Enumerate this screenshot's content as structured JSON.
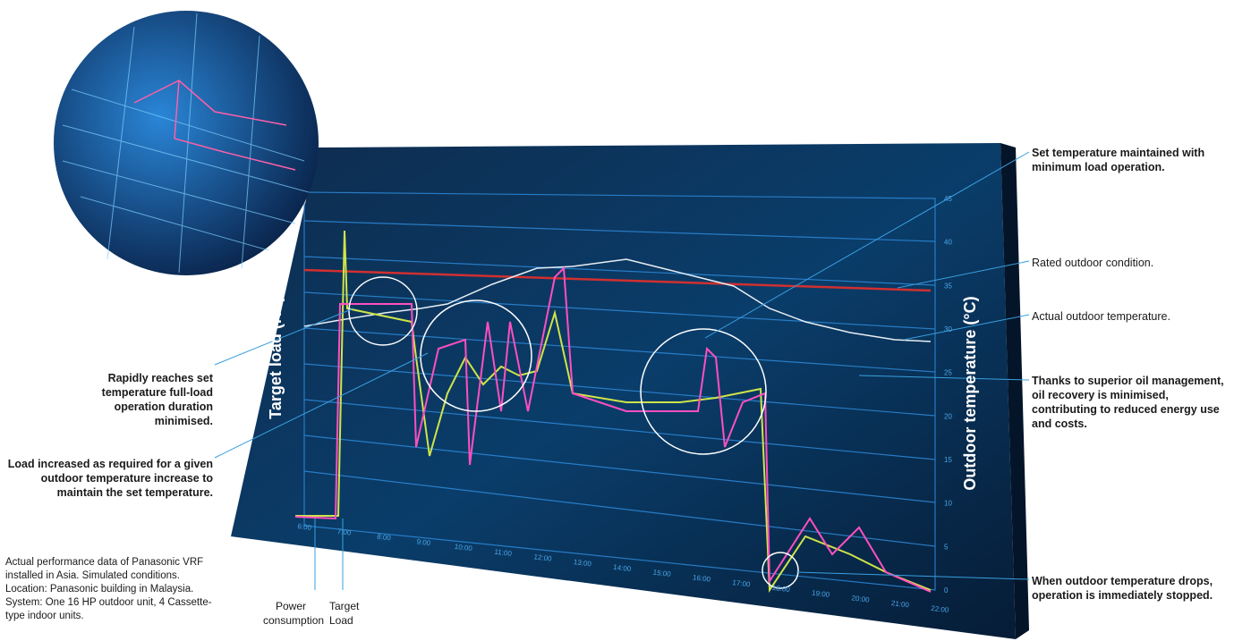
{
  "chart_panel": {
    "y_left_label": "Target load (HP)",
    "y_right_label": "Outdoor temperature (°C)",
    "right_ticks": [
      "0",
      "5",
      "10",
      "15",
      "20",
      "25",
      "30",
      "35",
      "40",
      "45"
    ],
    "x_ticks": [
      "6:00",
      "7:00",
      "8:00",
      "9:00",
      "10:00",
      "11:00",
      "12:00",
      "13:00",
      "14:00",
      "15:00",
      "16:00",
      "17:00",
      "18:00",
      "19:00",
      "20:00",
      "21:00",
      "22:00"
    ]
  },
  "legend": [
    "Power consumption",
    "Target Load"
  ],
  "annotations_left": [
    "Rapidly reaches set temperature full-load operation duration minimised.",
    "Load increased as required for a given outdoor temperature increase to maintain the set temperature."
  ],
  "annotations_right": [
    "Set temperature maintained with minimum load operation.",
    "Rated outdoor condition.",
    "Actual outdoor temperature.",
    "Thanks to superior oil management, oil recovery is minimised, contributing to reduced energy use and costs.",
    "When outdoor temperature drops, operation is immediately stopped."
  ],
  "footnote": "Actual performance data of Panasonic VRF installed in Asia. Simulated conditions. Location: Panasonic building in Malaysia. System: One 16 HP outdoor unit, 4 Cassette-type indoor units."
}
